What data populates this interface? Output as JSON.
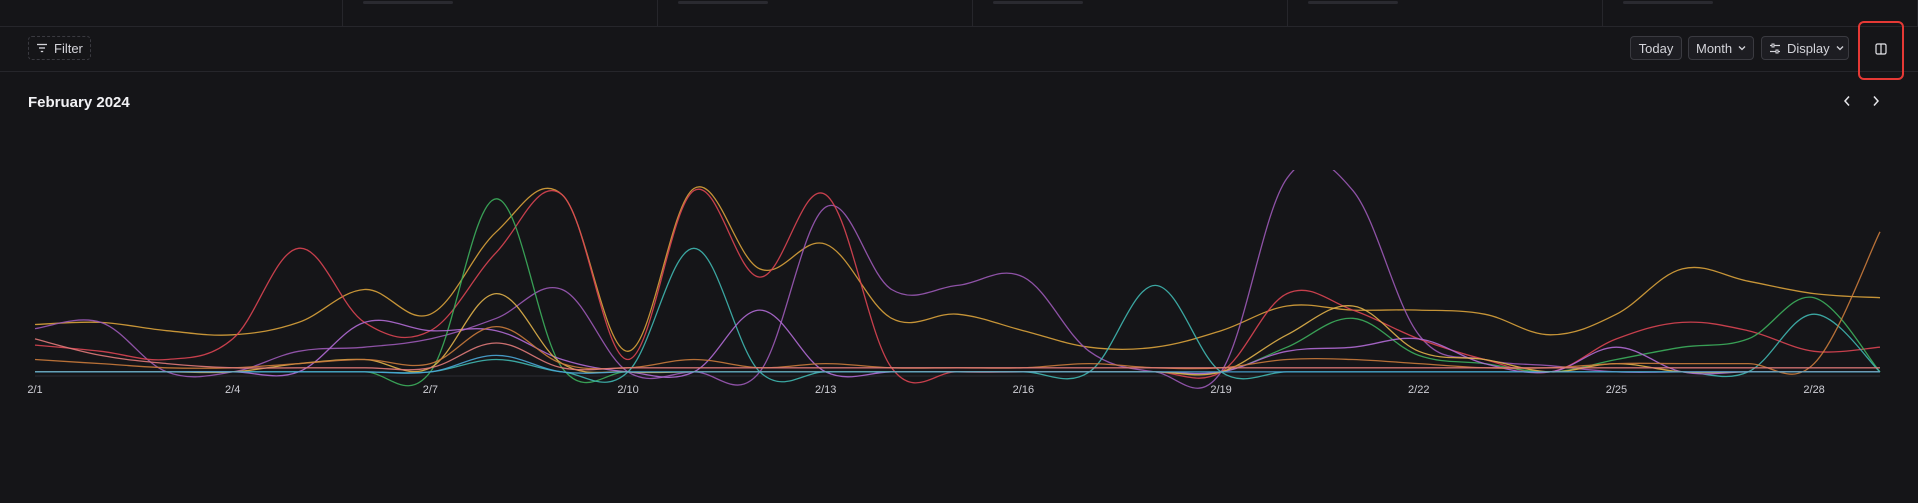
{
  "toolbar": {
    "filter_label": "Filter",
    "today_label": "Today",
    "month_label": "Month",
    "display_label": "Display",
    "icons": {
      "filter": "filter-icon",
      "month_chevron": "chevron-down-icon",
      "display": "sliders-icon",
      "display_chevron": "chevron-down-icon",
      "split_view": "split-view-icon"
    }
  },
  "header": {
    "month_title": "February 2024",
    "prev": "chevron-left-icon",
    "next": "chevron-right-icon"
  },
  "colors": {
    "background": "#151518",
    "highlight": "#e53935"
  },
  "chart_data": {
    "type": "line",
    "title": "",
    "xlabel": "",
    "ylabel": "",
    "x": [
      "2/1",
      "2/2",
      "2/3",
      "2/4",
      "2/5",
      "2/6",
      "2/7",
      "2/8",
      "2/9",
      "2/10",
      "2/11",
      "2/12",
      "2/13",
      "2/14",
      "2/15",
      "2/16",
      "2/17",
      "2/18",
      "2/19",
      "2/20",
      "2/21",
      "2/22",
      "2/23",
      "2/24",
      "2/25",
      "2/26",
      "2/27",
      "2/28",
      "2/29"
    ],
    "x_tick_labels": [
      "2/1",
      "2/4",
      "2/7",
      "2/10",
      "2/13",
      "2/16",
      "2/19",
      "2/22",
      "2/25",
      "2/28"
    ],
    "ylim": [
      0,
      100
    ],
    "grid": false,
    "series": [
      {
        "color": "#d9a23b",
        "values": [
          25,
          26,
          22,
          20,
          26,
          42,
          30,
          70,
          88,
          12,
          91,
          52,
          64,
          28,
          30,
          22,
          14,
          14,
          22,
          34,
          32,
          32,
          30,
          20,
          30,
          52,
          46,
          40,
          38
        ]
      },
      {
        "color": "#9b59b6",
        "values": [
          23,
          26,
          2,
          2,
          12,
          14,
          18,
          28,
          42,
          2,
          2,
          2,
          82,
          42,
          44,
          48,
          12,
          2,
          2,
          96,
          90,
          20,
          8,
          5,
          2,
          2,
          2,
          2,
          2
        ]
      },
      {
        "color": "#d94452",
        "values": [
          15,
          12,
          8,
          18,
          62,
          26,
          22,
          60,
          88,
          8,
          90,
          48,
          88,
          4,
          2,
          2,
          2,
          2,
          2,
          40,
          32,
          18,
          8,
          2,
          18,
          26,
          22,
          12,
          14
        ]
      },
      {
        "color": "#3cae5c",
        "values": [
          2,
          2,
          2,
          2,
          2,
          2,
          2,
          86,
          4,
          2,
          2,
          2,
          2,
          2,
          2,
          2,
          2,
          2,
          2,
          14,
          28,
          10,
          6,
          2,
          8,
          14,
          18,
          38,
          2
        ]
      },
      {
        "color": "#3fb6b0",
        "values": [
          2,
          2,
          2,
          2,
          2,
          2,
          2,
          8,
          2,
          2,
          62,
          2,
          2,
          2,
          2,
          2,
          2,
          44,
          2,
          2,
          2,
          2,
          2,
          2,
          2,
          2,
          2,
          30,
          2
        ]
      },
      {
        "color": "#b06ad4",
        "values": [
          2,
          2,
          2,
          2,
          2,
          26,
          22,
          22,
          8,
          2,
          2,
          32,
          2,
          2,
          2,
          2,
          2,
          2,
          2,
          12,
          14,
          18,
          6,
          2,
          14,
          2,
          2,
          2,
          2
        ]
      },
      {
        "color": "#e0b14a",
        "values": [
          2,
          2,
          2,
          2,
          6,
          8,
          4,
          40,
          6,
          2,
          2,
          2,
          2,
          2,
          2,
          2,
          2,
          2,
          2,
          20,
          34,
          12,
          8,
          2,
          6,
          2,
          2,
          2,
          2
        ]
      },
      {
        "color": "#c97a3b",
        "values": [
          8,
          6,
          4,
          4,
          6,
          8,
          6,
          24,
          6,
          4,
          8,
          4,
          6,
          4,
          4,
          4,
          6,
          4,
          4,
          8,
          8,
          6,
          4,
          4,
          6,
          6,
          6,
          6,
          70
        ]
      },
      {
        "color": "#4aa6d6",
        "values": [
          2,
          2,
          2,
          2,
          2,
          2,
          2,
          10,
          2,
          2,
          2,
          2,
          2,
          2,
          2,
          2,
          2,
          2,
          2,
          2,
          2,
          2,
          2,
          2,
          2,
          2,
          2,
          2,
          2
        ]
      },
      {
        "color": "#e07a7a",
        "values": [
          18,
          10,
          6,
          4,
          4,
          4,
          4,
          16,
          4,
          4,
          4,
          4,
          4,
          4,
          4,
          4,
          4,
          4,
          4,
          4,
          4,
          4,
          4,
          4,
          4,
          4,
          4,
          4,
          4
        ]
      }
    ]
  }
}
